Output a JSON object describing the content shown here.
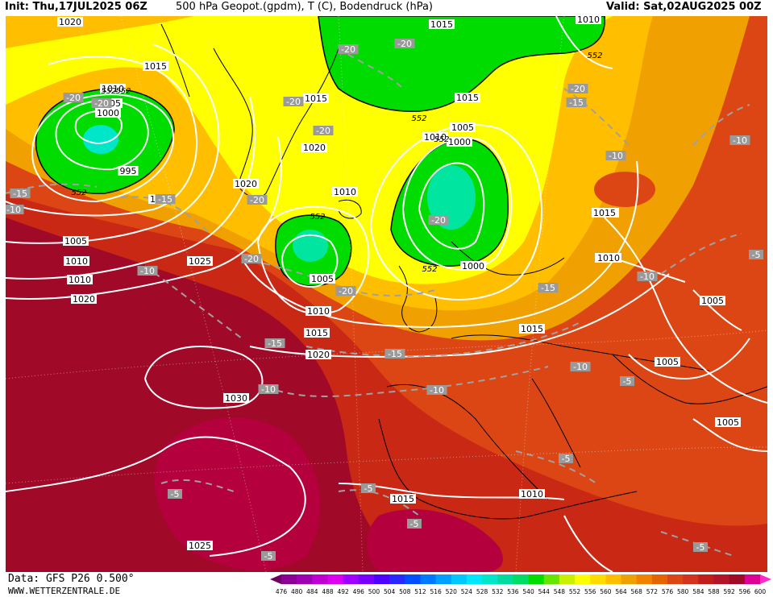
{
  "header": {
    "init": "Init: Thu,17JUL2025 06Z",
    "title": "500 hPa Geopot.(gpdm), T (C), Bodendruck (hPa)",
    "valid": "Valid: Sat,02AUG2025 00Z"
  },
  "footer": {
    "data_source": "Data: GFS P26 0.500°",
    "website": "WWW.WETTERZENTRALE.DE"
  },
  "colors": {
    "green_low": "#00dc00",
    "cyan_core": "#00e6c8",
    "yellow": "#ffff00",
    "orange": "#f0a000",
    "red": "#c82814",
    "dark_red": "#a00a28",
    "crimson": "#b4003c",
    "isobar": "#ffffff",
    "isotherm": "#a0a0a0",
    "coast": "#000000"
  },
  "colorbar": {
    "labels": [
      "476",
      "480",
      "484",
      "488",
      "492",
      "496",
      "500",
      "504",
      "508",
      "512",
      "516",
      "520",
      "524",
      "528",
      "532",
      "536",
      "540",
      "544",
      "548",
      "552",
      "556",
      "560",
      "564",
      "568",
      "572",
      "576",
      "580",
      "584",
      "588",
      "592",
      "596",
      "600"
    ],
    "colors": [
      "#6e0064",
      "#8c0096",
      "#a000b4",
      "#be00d2",
      "#dc00f0",
      "#a000ff",
      "#7800ff",
      "#5000ff",
      "#2828ff",
      "#0050ff",
      "#0078ff",
      "#00a0ff",
      "#00c8ff",
      "#00e6ff",
      "#00e6c8",
      "#00dca0",
      "#00dc64",
      "#00dc00",
      "#64e600",
      "#c8f000",
      "#ffff00",
      "#ffdc00",
      "#ffbe00",
      "#f0a000",
      "#f08200",
      "#e66400",
      "#dc4614",
      "#d2321e",
      "#c31e1e",
      "#b41428",
      "#a00a28",
      "#dc0096",
      "#ff28c8"
    ]
  },
  "labels": {
    "isobars": [
      "1020",
      "1015",
      "1010",
      "1005",
      "1000",
      "995",
      "1015",
      "1010",
      "1005",
      "1000",
      "1010",
      "1015",
      "1020",
      "1025",
      "1020",
      "1010",
      "1005",
      "1010",
      "1015",
      "1020",
      "1030",
      "1025",
      "1015",
      "1010",
      "1015",
      "1010",
      "1015",
      "1010",
      "1005",
      "1005",
      "1005",
      "1000",
      "1005",
      "1010",
      "1015",
      "1010",
      "1015",
      "1020",
      "1015",
      "1010",
      "1000"
    ],
    "heights": [
      "552",
      "552",
      "552",
      "552",
      "552",
      "552",
      "552",
      "552"
    ],
    "temps": [
      "-20",
      "-20",
      "-20",
      "-20",
      "-20",
      "-20",
      "-20",
      "-20",
      "-20",
      "-20",
      "-20",
      "-15",
      "-15",
      "-15",
      "-15",
      "-15",
      "-15",
      "-10",
      "-10",
      "-10",
      "-10",
      "-10",
      "-10",
      "-10",
      "-10",
      "-5",
      "-5",
      "-5",
      "-5",
      "-5",
      "-5",
      "-5",
      "-5"
    ]
  }
}
